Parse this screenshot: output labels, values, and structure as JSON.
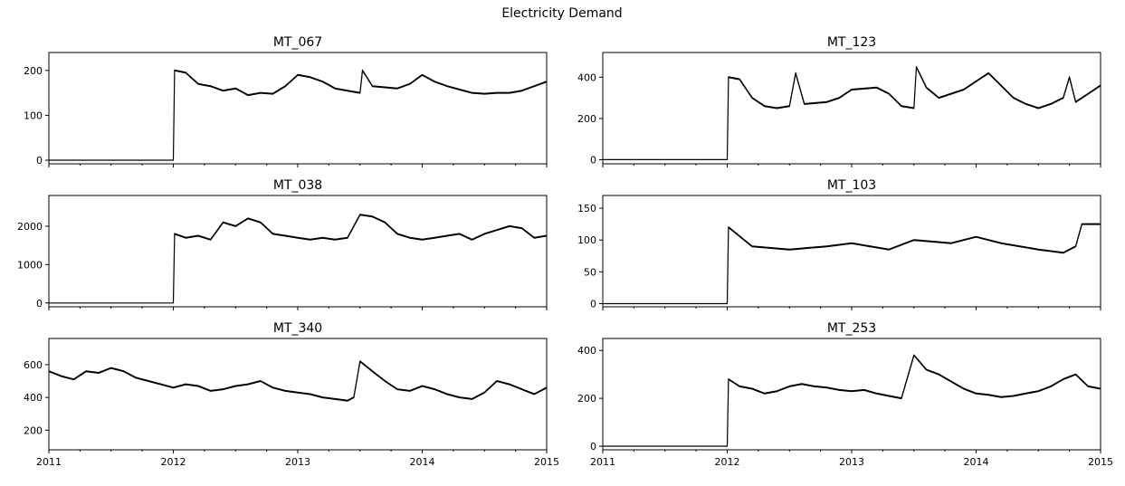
{
  "figure": {
    "title": "Electricity Demand",
    "x_tick_labels": [
      "2011",
      "2012",
      "2013",
      "2014",
      "2015"
    ]
  },
  "chart_data": [
    {
      "type": "line",
      "title": "MT_067",
      "xlim": [
        2011,
        2015
      ],
      "ylim": [
        -8,
        240
      ],
      "y_ticks": [
        0,
        100,
        200
      ],
      "color": "#000000",
      "series": [
        {
          "values": [
            [
              2011,
              0
            ],
            [
              2012,
              0
            ],
            [
              2012.01,
              200
            ],
            [
              2012.1,
              195
            ],
            [
              2012.2,
              170
            ],
            [
              2012.3,
              165
            ],
            [
              2012.4,
              155
            ],
            [
              2012.5,
              160
            ],
            [
              2012.6,
              145
            ],
            [
              2012.7,
              150
            ],
            [
              2012.8,
              148
            ],
            [
              2012.9,
              165
            ],
            [
              2013.0,
              190
            ],
            [
              2013.1,
              185
            ],
            [
              2013.2,
              175
            ],
            [
              2013.3,
              160
            ],
            [
              2013.4,
              155
            ],
            [
              2013.5,
              150
            ],
            [
              2013.52,
              200
            ],
            [
              2013.6,
              165
            ],
            [
              2013.8,
              160
            ],
            [
              2013.9,
              170
            ],
            [
              2014.0,
              190
            ],
            [
              2014.1,
              175
            ],
            [
              2014.2,
              165
            ],
            [
              2014.4,
              150
            ],
            [
              2014.5,
              148
            ],
            [
              2014.6,
              150
            ],
            [
              2014.7,
              150
            ],
            [
              2014.8,
              155
            ],
            [
              2014.9,
              165
            ],
            [
              2015,
              175
            ]
          ]
        }
      ]
    },
    {
      "type": "line",
      "title": "MT_123",
      "xlim": [
        2011,
        2015
      ],
      "ylim": [
        -20,
        520
      ],
      "y_ticks": [
        0,
        200,
        400
      ],
      "color": "#000000",
      "series": [
        {
          "values": [
            [
              2011,
              0
            ],
            [
              2012,
              0
            ],
            [
              2012.01,
              400
            ],
            [
              2012.1,
              390
            ],
            [
              2012.2,
              300
            ],
            [
              2012.3,
              260
            ],
            [
              2012.4,
              250
            ],
            [
              2012.5,
              260
            ],
            [
              2012.55,
              420
            ],
            [
              2012.62,
              270
            ],
            [
              2012.8,
              280
            ],
            [
              2012.9,
              300
            ],
            [
              2013.0,
              340
            ],
            [
              2013.2,
              350
            ],
            [
              2013.3,
              320
            ],
            [
              2013.4,
              260
            ],
            [
              2013.5,
              250
            ],
            [
              2013.52,
              450
            ],
            [
              2013.6,
              350
            ],
            [
              2013.7,
              300
            ],
            [
              2013.9,
              340
            ],
            [
              2014.0,
              380
            ],
            [
              2014.1,
              420
            ],
            [
              2014.2,
              360
            ],
            [
              2014.3,
              300
            ],
            [
              2014.4,
              270
            ],
            [
              2014.5,
              250
            ],
            [
              2014.6,
              270
            ],
            [
              2014.7,
              300
            ],
            [
              2014.75,
              400
            ],
            [
              2014.8,
              280
            ],
            [
              2014.9,
              320
            ],
            [
              2015,
              360
            ]
          ]
        }
      ]
    },
    {
      "type": "line",
      "title": "MT_038",
      "xlim": [
        2011,
        2015
      ],
      "ylim": [
        -100,
        2800
      ],
      "y_ticks": [
        0,
        1000,
        2000
      ],
      "color": "#000000",
      "series": [
        {
          "values": [
            [
              2011,
              0
            ],
            [
              2012,
              0
            ],
            [
              2012.01,
              1800
            ],
            [
              2012.1,
              1700
            ],
            [
              2012.2,
              1750
            ],
            [
              2012.3,
              1650
            ],
            [
              2012.4,
              2100
            ],
            [
              2012.5,
              2000
            ],
            [
              2012.6,
              2200
            ],
            [
              2012.7,
              2100
            ],
            [
              2012.8,
              1800
            ],
            [
              2012.9,
              1750
            ],
            [
              2013.0,
              1700
            ],
            [
              2013.1,
              1650
            ],
            [
              2013.2,
              1700
            ],
            [
              2013.3,
              1650
            ],
            [
              2013.4,
              1700
            ],
            [
              2013.5,
              2300
            ],
            [
              2013.6,
              2250
            ],
            [
              2013.7,
              2100
            ],
            [
              2013.8,
              1800
            ],
            [
              2013.9,
              1700
            ],
            [
              2014.0,
              1650
            ],
            [
              2014.1,
              1700
            ],
            [
              2014.2,
              1750
            ],
            [
              2014.3,
              1800
            ],
            [
              2014.4,
              1650
            ],
            [
              2014.5,
              1800
            ],
            [
              2014.6,
              1900
            ],
            [
              2014.7,
              2000
            ],
            [
              2014.8,
              1950
            ],
            [
              2014.9,
              1700
            ],
            [
              2015,
              1750
            ]
          ]
        }
      ]
    },
    {
      "type": "line",
      "title": "MT_103",
      "xlim": [
        2011,
        2015
      ],
      "ylim": [
        -5,
        170
      ],
      "y_ticks": [
        0,
        50,
        100,
        150
      ],
      "color": "#000000",
      "series": [
        {
          "values": [
            [
              2011,
              0
            ],
            [
              2012,
              0
            ],
            [
              2012.01,
              120
            ],
            [
              2012.2,
              90
            ],
            [
              2012.5,
              85
            ],
            [
              2012.8,
              90
            ],
            [
              2013.0,
              95
            ],
            [
              2013.3,
              85
            ],
            [
              2013.5,
              100
            ],
            [
              2013.8,
              95
            ],
            [
              2014.0,
              105
            ],
            [
              2014.2,
              95
            ],
            [
              2014.5,
              85
            ],
            [
              2014.7,
              80
            ],
            [
              2014.8,
              90
            ],
            [
              2014.85,
              125
            ],
            [
              2015,
              125
            ]
          ]
        }
      ]
    },
    {
      "type": "line",
      "title": "MT_340",
      "xlim": [
        2011,
        2015
      ],
      "ylim": [
        80,
        760
      ],
      "y_ticks": [
        200,
        400,
        600
      ],
      "color": "#000000",
      "series": [
        {
          "values": [
            [
              2011,
              560
            ],
            [
              2011.1,
              530
            ],
            [
              2011.2,
              510
            ],
            [
              2011.3,
              560
            ],
            [
              2011.4,
              550
            ],
            [
              2011.5,
              580
            ],
            [
              2011.6,
              560
            ],
            [
              2011.7,
              520
            ],
            [
              2011.8,
              500
            ],
            [
              2011.9,
              480
            ],
            [
              2012.0,
              460
            ],
            [
              2012.1,
              480
            ],
            [
              2012.2,
              470
            ],
            [
              2012.3,
              440
            ],
            [
              2012.4,
              450
            ],
            [
              2012.5,
              470
            ],
            [
              2012.6,
              480
            ],
            [
              2012.7,
              500
            ],
            [
              2012.8,
              460
            ],
            [
              2012.9,
              440
            ],
            [
              2013.0,
              430
            ],
            [
              2013.1,
              420
            ],
            [
              2013.2,
              400
            ],
            [
              2013.3,
              390
            ],
            [
              2013.4,
              380
            ],
            [
              2013.45,
              400
            ],
            [
              2013.5,
              620
            ],
            [
              2013.6,
              560
            ],
            [
              2013.7,
              500
            ],
            [
              2013.8,
              450
            ],
            [
              2013.9,
              440
            ],
            [
              2014.0,
              470
            ],
            [
              2014.1,
              450
            ],
            [
              2014.2,
              420
            ],
            [
              2014.3,
              400
            ],
            [
              2014.4,
              390
            ],
            [
              2014.5,
              430
            ],
            [
              2014.6,
              500
            ],
            [
              2014.7,
              480
            ],
            [
              2014.8,
              450
            ],
            [
              2014.9,
              420
            ],
            [
              2015,
              460
            ]
          ]
        }
      ]
    },
    {
      "type": "line",
      "title": "MT_253",
      "xlim": [
        2011,
        2015
      ],
      "ylim": [
        -15,
        450
      ],
      "y_ticks": [
        0,
        200,
        400
      ],
      "color": "#000000",
      "series": [
        {
          "values": [
            [
              2011,
              0
            ],
            [
              2012,
              0
            ],
            [
              2012.01,
              280
            ],
            [
              2012.1,
              250
            ],
            [
              2012.2,
              240
            ],
            [
              2012.3,
              220
            ],
            [
              2012.4,
              230
            ],
            [
              2012.5,
              250
            ],
            [
              2012.6,
              260
            ],
            [
              2012.7,
              250
            ],
            [
              2012.8,
              245
            ],
            [
              2012.9,
              235
            ],
            [
              2013.0,
              230
            ],
            [
              2013.1,
              235
            ],
            [
              2013.2,
              220
            ],
            [
              2013.3,
              210
            ],
            [
              2013.4,
              200
            ],
            [
              2013.5,
              380
            ],
            [
              2013.6,
              320
            ],
            [
              2013.7,
              300
            ],
            [
              2013.8,
              270
            ],
            [
              2013.9,
              240
            ],
            [
              2014.0,
              220
            ],
            [
              2014.1,
              215
            ],
            [
              2014.2,
              205
            ],
            [
              2014.3,
              210
            ],
            [
              2014.4,
              220
            ],
            [
              2014.5,
              230
            ],
            [
              2014.6,
              250
            ],
            [
              2014.7,
              280
            ],
            [
              2014.8,
              300
            ],
            [
              2014.9,
              250
            ],
            [
              2015,
              240
            ]
          ]
        }
      ]
    }
  ]
}
